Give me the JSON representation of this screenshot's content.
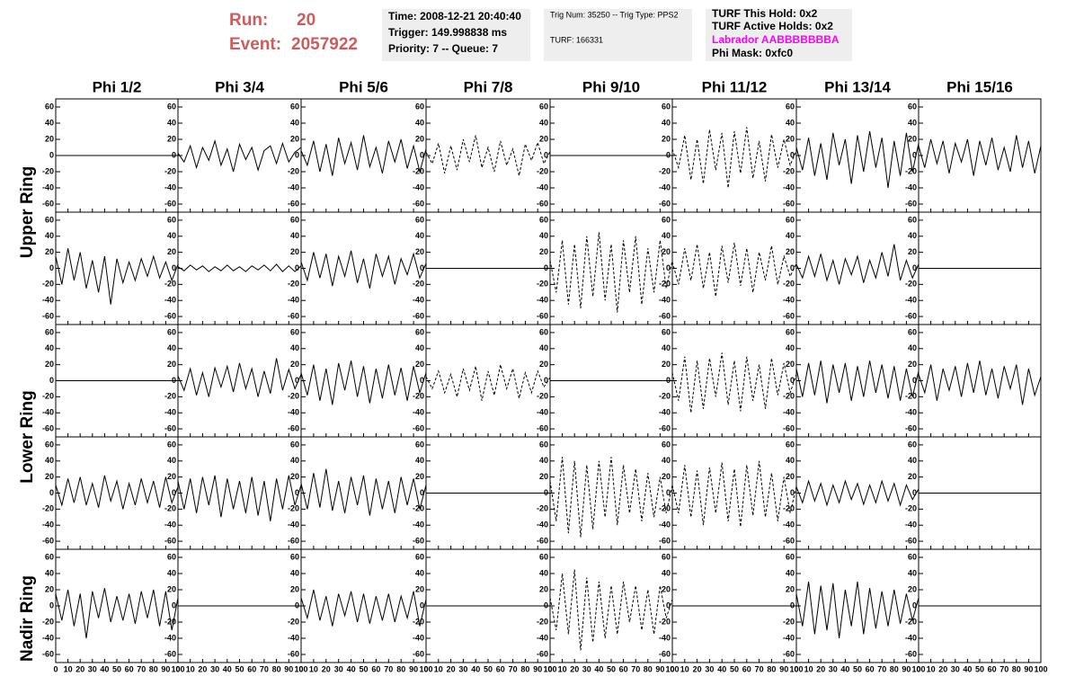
{
  "header": {
    "run_label": "Run:",
    "run_value": "20",
    "event_label": "Event:",
    "event_value": "2057922",
    "box1": [
      "Time: 2008-12-21 20:40:40",
      "Trigger: 149.998838 ms",
      "Priority: 7 -- Queue: 7"
    ],
    "box2": [
      "Trig Num: 35250 -- Trig Type: PPS2",
      "TURF: 166331"
    ],
    "box3": [
      "TURF This Hold: 0x2",
      "TURF Active Holds: 0x2",
      "Labrador AABBBBBBBA",
      "Phi Mask: 0xfc0"
    ],
    "labrador_color": "#ff00ff",
    "run_color": "#cd5c5c"
  },
  "chart_data": {
    "type": "line",
    "column_titles": [
      "Phi 1/2",
      "Phi 3/4",
      "Phi 5/6",
      "Phi 7/8",
      "Phi 9/10",
      "Phi 11/12",
      "Phi 13/14",
      "Phi 15/16"
    ],
    "row_titles": [
      "Upper Ring",
      "Lower Ring",
      "Nadir Ring"
    ],
    "xlim": [
      0,
      100
    ],
    "ylim": [
      -70,
      70
    ],
    "xticks": [
      0,
      10,
      20,
      30,
      40,
      50,
      60,
      70,
      80,
      90,
      100
    ],
    "yticks": [
      -60,
      -40,
      -20,
      0,
      20,
      40,
      60
    ],
    "x": [
      0,
      5,
      10,
      15,
      20,
      25,
      30,
      35,
      40,
      45,
      50,
      55,
      60,
      65,
      70,
      75,
      80,
      85,
      90,
      95,
      100
    ],
    "color": "#000000",
    "panels": [
      {
        "style": "solid",
        "values": [
          0,
          0,
          0,
          0,
          0,
          0,
          0,
          0,
          0,
          0,
          0,
          0,
          0,
          0,
          0,
          0,
          0,
          0,
          0,
          0,
          0
        ]
      },
      {
        "style": "solid",
        "values": [
          3,
          -8,
          12,
          -15,
          10,
          -6,
          18,
          -12,
          8,
          -20,
          14,
          -5,
          10,
          -18,
          6,
          12,
          -10,
          15,
          -8,
          4,
          10
        ]
      },
      {
        "style": "solid",
        "values": [
          6,
          -12,
          18,
          -20,
          14,
          -25,
          22,
          -10,
          16,
          -18,
          25,
          -14,
          10,
          -22,
          18,
          -8,
          20,
          -16,
          12,
          -20,
          8
        ]
      },
      {
        "style": "dashed",
        "values": [
          4,
          -10,
          15,
          -22,
          12,
          -18,
          20,
          -8,
          25,
          -15,
          10,
          -20,
          18,
          -12,
          8,
          -25,
          14,
          -6,
          16,
          -10,
          5
        ]
      },
      {
        "style": "solid",
        "values": [
          0,
          0,
          0,
          0,
          0,
          0,
          0,
          0,
          0,
          0,
          0,
          0,
          0,
          0,
          0,
          0,
          0,
          0,
          0,
          0,
          0
        ]
      },
      {
        "style": "dashed",
        "values": [
          8,
          -15,
          25,
          -30,
          20,
          -35,
          32,
          -18,
          28,
          -40,
          30,
          -22,
          35,
          -28,
          18,
          -32,
          26,
          -15,
          20,
          -12,
          6
        ]
      },
      {
        "style": "solid",
        "values": [
          10,
          -18,
          22,
          -25,
          15,
          -30,
          28,
          -12,
          20,
          -35,
          25,
          -20,
          30,
          -15,
          22,
          -40,
          18,
          -25,
          28,
          -20,
          15
        ]
      },
      {
        "style": "solid",
        "values": [
          12,
          -15,
          20,
          -10,
          18,
          -22,
          15,
          -8,
          20,
          -25,
          18,
          -12,
          22,
          -18,
          10,
          -20,
          25,
          -15,
          18,
          -22,
          12
        ]
      },
      {
        "style": "solid",
        "values": [
          15,
          -20,
          25,
          -15,
          20,
          -25,
          10,
          -30,
          15,
          -45,
          12,
          -18,
          8,
          -15,
          12,
          -10,
          15,
          -12,
          8,
          -15,
          5
        ]
      },
      {
        "style": "solid",
        "values": [
          2,
          -3,
          4,
          -2,
          3,
          -4,
          2,
          -3,
          4,
          -3,
          2,
          -4,
          3,
          -2,
          4,
          -3,
          5,
          -4,
          3,
          -4,
          3
        ]
      },
      {
        "style": "solid",
        "values": [
          8,
          -15,
          20,
          -12,
          18,
          -22,
          15,
          -10,
          22,
          -18,
          12,
          -25,
          18,
          -10,
          15,
          -20,
          12,
          -8,
          18,
          -12,
          6
        ]
      },
      {
        "style": "solid",
        "values": [
          0,
          0,
          0,
          0,
          0,
          0,
          0,
          0,
          0,
          0,
          0,
          0,
          0,
          0,
          0,
          0,
          0,
          0,
          0,
          0,
          0
        ]
      },
      {
        "style": "dashed",
        "values": [
          10,
          -30,
          35,
          -45,
          30,
          -50,
          40,
          -35,
          45,
          -40,
          30,
          -55,
          35,
          -30,
          40,
          -45,
          25,
          -30,
          35,
          -25,
          10
        ]
      },
      {
        "style": "dashed",
        "values": [
          8,
          -20,
          25,
          -15,
          30,
          -25,
          20,
          -35,
          28,
          -18,
          32,
          -22,
          25,
          -30,
          20,
          -15,
          28,
          -20,
          15,
          -10,
          6
        ]
      },
      {
        "style": "solid",
        "values": [
          5,
          -12,
          15,
          -10,
          18,
          -15,
          10,
          -20,
          12,
          -8,
          15,
          -18,
          10,
          -12,
          20,
          -10,
          30,
          -15,
          10,
          -12,
          5
        ]
      },
      {
        "style": "solid",
        "values": [
          0,
          0,
          0,
          0,
          0,
          0,
          0,
          0,
          0,
          0,
          0,
          0,
          0,
          0,
          0,
          0,
          0,
          0,
          0,
          0,
          0
        ]
      },
      {
        "style": "solid",
        "values": [
          0,
          0,
          0,
          0,
          0,
          0,
          0,
          0,
          0,
          0,
          0,
          0,
          0,
          0,
          0,
          0,
          0,
          0,
          0,
          0,
          0
        ]
      },
      {
        "style": "solid",
        "values": [
          6,
          -12,
          15,
          -18,
          10,
          -20,
          16,
          -8,
          18,
          -14,
          22,
          -10,
          15,
          -20,
          12,
          -16,
          28,
          -12,
          14,
          -10,
          8
        ]
      },
      {
        "style": "solid",
        "values": [
          10,
          -18,
          20,
          -25,
          15,
          -30,
          22,
          -12,
          25,
          -20,
          18,
          -28,
          15,
          -22,
          20,
          -18,
          16,
          -25,
          18,
          -15,
          10
        ]
      },
      {
        "style": "dashed",
        "values": [
          5,
          -10,
          12,
          -15,
          8,
          -20,
          15,
          -12,
          18,
          -25,
          12,
          -18,
          20,
          -10,
          15,
          -22,
          10,
          -15,
          12,
          -8,
          4
        ]
      },
      {
        "style": "solid",
        "values": [
          0,
          0,
          0,
          0,
          0,
          0,
          0,
          0,
          0,
          0,
          0,
          0,
          0,
          0,
          0,
          0,
          0,
          0,
          0,
          0,
          0
        ]
      },
      {
        "style": "dashed",
        "values": [
          10,
          -25,
          30,
          -40,
          25,
          -35,
          28,
          -20,
          35,
          -30,
          25,
          -38,
          30,
          -25,
          20,
          -35,
          28,
          -18,
          22,
          -15,
          8
        ]
      },
      {
        "style": "solid",
        "values": [
          15,
          -20,
          22,
          -18,
          25,
          -28,
          20,
          -15,
          22,
          -25,
          18,
          -20,
          25,
          -15,
          20,
          -22,
          18,
          -25,
          15,
          -20,
          12
        ]
      },
      {
        "style": "solid",
        "values": [
          8,
          -15,
          20,
          -25,
          15,
          -12,
          18,
          -20,
          22,
          -15,
          25,
          -18,
          15,
          -22,
          18,
          -10,
          20,
          -30,
          15,
          -18,
          5
        ]
      },
      {
        "style": "solid",
        "values": [
          10,
          -15,
          18,
          -12,
          20,
          -15,
          12,
          -18,
          22,
          -10,
          15,
          -20,
          12,
          -15,
          18,
          -12,
          15,
          -18,
          20,
          -12,
          8
        ]
      },
      {
        "style": "solid",
        "values": [
          15,
          -20,
          18,
          -25,
          20,
          -15,
          22,
          -30,
          18,
          -20,
          15,
          -25,
          20,
          -28,
          15,
          -35,
          18,
          -20,
          22,
          -15,
          10
        ]
      },
      {
        "style": "solid",
        "values": [
          12,
          -20,
          25,
          -18,
          30,
          -22,
          15,
          -25,
          20,
          -15,
          22,
          -28,
          18,
          -20,
          15,
          -25,
          20,
          -15,
          18,
          -20,
          10
        ]
      },
      {
        "style": "solid",
        "values": [
          0,
          0,
          0,
          0,
          0,
          0,
          0,
          0,
          0,
          0,
          0,
          0,
          0,
          0,
          0,
          0,
          0,
          0,
          0,
          0,
          0
        ]
      },
      {
        "style": "dashed",
        "values": [
          15,
          -35,
          45,
          -50,
          40,
          -55,
          35,
          -45,
          40,
          -30,
          45,
          -40,
          35,
          -25,
          30,
          -35,
          25,
          -30,
          20,
          -25,
          10
        ]
      },
      {
        "style": "dashed",
        "values": [
          10,
          -25,
          35,
          -30,
          28,
          -40,
          32,
          -25,
          38,
          -35,
          30,
          -42,
          35,
          -28,
          40,
          -30,
          25,
          -35,
          20,
          -25,
          8
        ]
      },
      {
        "style": "solid",
        "values": [
          8,
          -12,
          15,
          -10,
          12,
          -15,
          10,
          -12,
          15,
          -8,
          12,
          -14,
          10,
          -12,
          15,
          -10,
          12,
          -15,
          10,
          -8,
          5
        ]
      },
      {
        "style": "solid",
        "values": [
          0,
          0,
          0,
          0,
          0,
          0,
          0,
          0,
          0,
          0,
          0,
          0,
          0,
          0,
          0,
          0,
          0,
          0,
          0,
          0,
          0
        ]
      },
      {
        "style": "solid",
        "values": [
          15,
          -18,
          20,
          -25,
          15,
          -40,
          18,
          -15,
          22,
          -20,
          12,
          -18,
          15,
          -22,
          18,
          -15,
          20,
          -25,
          18,
          -30,
          10
        ]
      },
      {
        "style": "solid",
        "values": [
          0,
          0,
          0,
          0,
          0,
          0,
          0,
          0,
          0,
          0,
          0,
          0,
          0,
          0,
          0,
          0,
          0,
          0,
          0,
          0,
          0
        ]
      },
      {
        "style": "solid",
        "values": [
          10,
          -15,
          20,
          -18,
          12,
          -25,
          15,
          -12,
          18,
          -20,
          15,
          -22,
          12,
          -18,
          15,
          -20,
          12,
          -15,
          18,
          -25,
          8
        ]
      },
      {
        "style": "solid",
        "values": [
          0,
          0,
          0,
          0,
          0,
          0,
          0,
          0,
          0,
          0,
          0,
          0,
          0,
          0,
          0,
          0,
          0,
          0,
          0,
          0,
          0
        ]
      },
      {
        "style": "dashed",
        "values": [
          10,
          -30,
          40,
          -35,
          45,
          -55,
          35,
          -45,
          30,
          -40,
          25,
          -35,
          30,
          -20,
          25,
          -30,
          20,
          -35,
          25,
          -15,
          8
        ]
      },
      {
        "style": "solid",
        "values": [
          0,
          0,
          0,
          0,
          0,
          0,
          0,
          0,
          0,
          0,
          0,
          0,
          0,
          0,
          0,
          0,
          0,
          0,
          0,
          0,
          0
        ]
      },
      {
        "style": "solid",
        "values": [
          15,
          -25,
          30,
          -35,
          25,
          -30,
          28,
          -40,
          20,
          -25,
          30,
          -35,
          22,
          -28,
          18,
          -25,
          20,
          -22,
          15,
          -18,
          10
        ]
      },
      {
        "style": "solid",
        "values": [
          0,
          0,
          0,
          0,
          0,
          0,
          0,
          0,
          0,
          0,
          0,
          0,
          0,
          0,
          0,
          0,
          0,
          0,
          0,
          0,
          0
        ]
      }
    ]
  }
}
